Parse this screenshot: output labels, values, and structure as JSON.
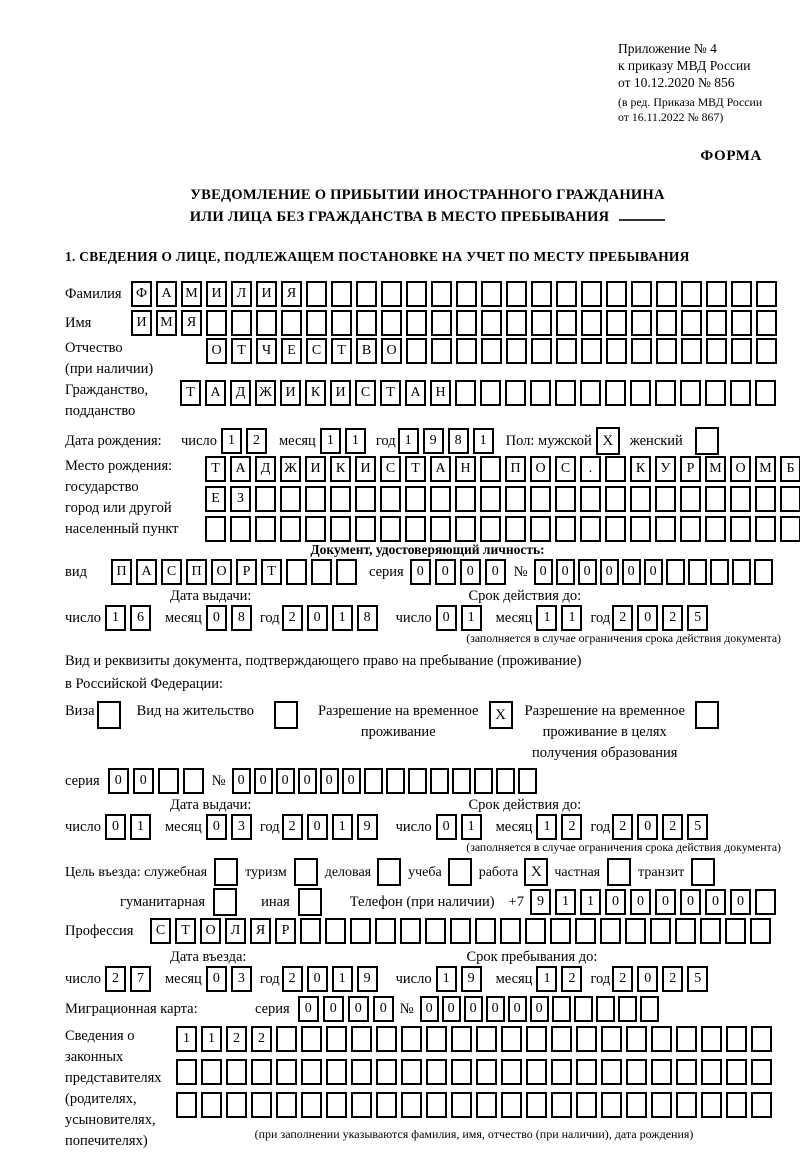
{
  "header": {
    "line1": "Приложение № 4",
    "line2": "к приказу МВД России",
    "line3": "от 10.12.2020 № 856",
    "line4": "(в ред. Приказа МВД России",
    "line5": "от 16.11.2022 № 867)",
    "form_label": "ФОРМА"
  },
  "title": {
    "line1": "УВЕДОМЛЕНИЕ О ПРИБЫТИИ ИНОСТРАННОГО ГРАЖДАНИНА",
    "line2": "ИЛИ ЛИЦА БЕЗ ГРАЖДАНСТВА В МЕСТО ПРЕБЫВАНИЯ"
  },
  "section1_heading": "1. СВЕДЕНИЯ О ЛИЦЕ, ПОДЛЕЖАЩЕМ ПОСТАНОВКЕ НА УЧЕТ ПО МЕСТУ ПРЕБЫВАНИЯ",
  "labels": {
    "surname": "Фамилия",
    "name": "Имя",
    "patronymic": "Отчество",
    "patronymic_note": "(при наличии)",
    "citizenship1": "Гражданство,",
    "citizenship2": "подданство",
    "birth_date": "Дата рождения:",
    "day": "число",
    "month": "месяц",
    "year": "год",
    "sex": "Пол: мужской",
    "female": "женский",
    "birth_place": "Место рождения:",
    "state": "государство",
    "city1": "город или другой",
    "city2": "населенный пункт",
    "identity_doc": "Документ, удостоверяющий личность:",
    "doc_type": "вид",
    "series": "серия",
    "number_sign": "№",
    "issue_date": "Дата выдачи:",
    "valid_until": "Срок действия до:",
    "valid_note": "(заполняется в случае ограничения срока действия документа)",
    "residence_doc1": "Вид и реквизиты документа, подтверждающего право на пребывание (проживание)",
    "residence_doc2": "в Российской Федерации:",
    "visa": "Виза",
    "residence_permit": "Вид на жительство",
    "temp_permit1": "Разрешение на временное",
    "temp_permit2": "проживание",
    "edu_permit1": "Разрешение на временное",
    "edu_permit2": "проживание в целях",
    "edu_permit3": "получения образования",
    "purpose": "Цель въезда: служебная",
    "tourism": "туризм",
    "business": "деловая",
    "study": "учеба",
    "work": "работа",
    "private": "частная",
    "transit": "транзит",
    "humanitarian": "гуманитарная",
    "other": "иная",
    "phone": "Телефон (при наличии)",
    "phone_prefix": "+7",
    "profession": "Профессия",
    "entry_date": "Дата въезда:",
    "stay_until": "Срок пребывания до:",
    "migration_card": "Миграционная карта:",
    "rep1": "Сведения о",
    "rep2": "законных",
    "rep3": "представителях",
    "rep4": "(родителях,",
    "rep5": "усыновителях,",
    "rep6": "попечителях)",
    "rep_note": "(при заполнении указываются фамилия, имя, отчество (при наличии), дата рождения)"
  },
  "cellrows": {
    "surname": {
      "t": "ФАМИЛИЯ",
      "n": 26
    },
    "name": {
      "t": "ИМЯ",
      "n": 26
    },
    "patronymic": {
      "t": "ОТЧЕСТВО",
      "n": 23
    },
    "citizenship": {
      "t": "ТАДЖИКИСТАН",
      "n": 24
    },
    "birth_d": {
      "t": "12",
      "n": 2
    },
    "birth_m": {
      "t": "11",
      "n": 2
    },
    "birth_y": {
      "t": "1981",
      "n": 4
    },
    "place1": {
      "t": "ТАДЖИКИСТАН ПОС. КУРМОМБ",
      "n": 24
    },
    "place2": {
      "t": "ЕЗ",
      "n": 24
    },
    "place3": {
      "t": "",
      "n": 24
    },
    "doc_kind": {
      "t": "ПАСПОРТ",
      "n": 10
    },
    "doc_series": {
      "t": "0000",
      "n": 4
    },
    "doc_number": {
      "t": "000000",
      "n": 11
    },
    "doc_issue_d": {
      "t": "16",
      "n": 2
    },
    "doc_issue_m": {
      "t": "08",
      "n": 2
    },
    "doc_issue_y": {
      "t": "2018",
      "n": 4
    },
    "doc_valid_d": {
      "t": "01",
      "n": 2
    },
    "doc_valid_m": {
      "t": "11",
      "n": 2
    },
    "doc_valid_y": {
      "t": "2025",
      "n": 4
    },
    "permit_series": {
      "t": "00",
      "n": 4
    },
    "permit_number": {
      "t": "000000",
      "n": 14
    },
    "permit_issue_d": {
      "t": "01",
      "n": 2
    },
    "permit_issue_m": {
      "t": "03",
      "n": 2
    },
    "permit_issue_y": {
      "t": "2019",
      "n": 4
    },
    "permit_valid_d": {
      "t": "01",
      "n": 2
    },
    "permit_valid_m": {
      "t": "12",
      "n": 2
    },
    "permit_valid_y": {
      "t": "2025",
      "n": 4
    },
    "phone": {
      "t": "911000000",
      "n": 10
    },
    "profession": {
      "t": "СТОЛЯР",
      "n": 25
    },
    "entry_d": {
      "t": "27",
      "n": 2
    },
    "entry_m": {
      "t": "03",
      "n": 2
    },
    "entry_y": {
      "t": "2019",
      "n": 4
    },
    "stay_d": {
      "t": "19",
      "n": 2
    },
    "stay_m": {
      "t": "12",
      "n": 2
    },
    "stay_y": {
      "t": "2025",
      "n": 4
    },
    "mig_series": {
      "t": "0000",
      "n": 4
    },
    "mig_number": {
      "t": "000000",
      "n": 11
    },
    "rep_row1": {
      "t": "1122",
      "n": 24
    },
    "rep_row2": {
      "t": "",
      "n": 24
    },
    "rep_row3": {
      "t": "",
      "n": 24
    }
  },
  "checks": {
    "male": "X",
    "female": "",
    "visa": "",
    "res_permit": "",
    "temp_permit": "X",
    "edu_permit": "",
    "official": "",
    "tourism": "",
    "business": "",
    "study": "",
    "work": "X",
    "private": "",
    "transit": "",
    "humanitarian": "",
    "other": ""
  },
  "colors": {
    "ink": "#000000",
    "paper": "#ffffff"
  }
}
